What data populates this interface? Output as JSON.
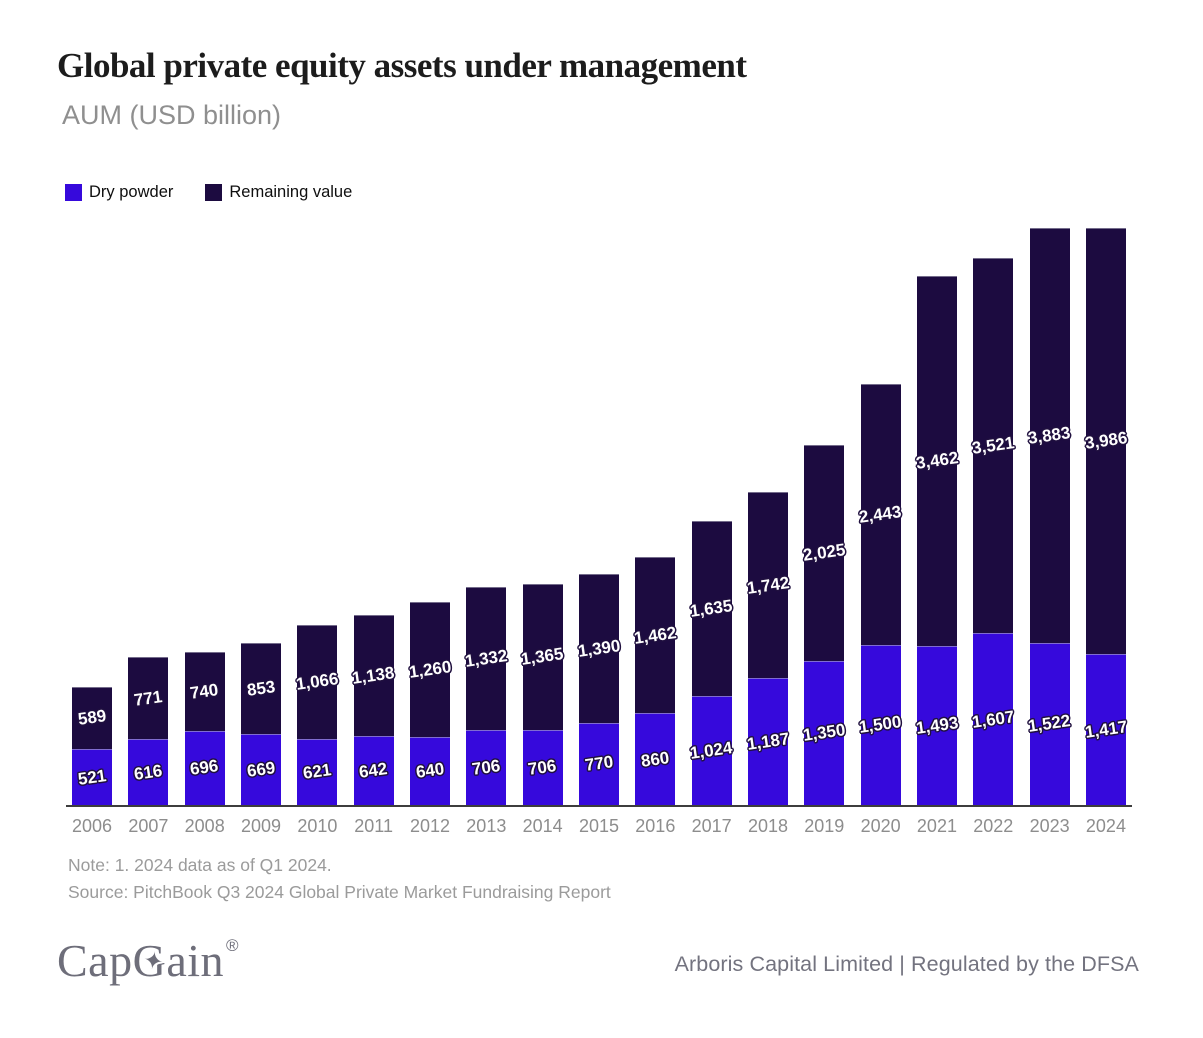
{
  "chart_data": {
    "type": "bar",
    "stacked": true,
    "title": "Global private equity assets under management",
    "subtitle": "AUM (USD billion)",
    "categories": [
      "2006",
      "2007",
      "2008",
      "2009",
      "2010",
      "2011",
      "2012",
      "2013",
      "2014",
      "2015",
      "2016",
      "2017",
      "2018",
      "2019",
      "2020",
      "2021",
      "2022",
      "2023",
      "2024"
    ],
    "series": [
      {
        "name": "Dry powder",
        "color": "#3609dc",
        "values": [
          521,
          616,
          696,
          669,
          621,
          642,
          640,
          706,
          706,
          770,
          860,
          1024,
          1187,
          1350,
          1500,
          1493,
          1607,
          1522,
          1417
        ]
      },
      {
        "name": "Remaining value",
        "color": "#1c0b40",
        "values": [
          589,
          771,
          740,
          853,
          1066,
          1138,
          1260,
          1332,
          1365,
          1390,
          1462,
          1635,
          1742,
          2025,
          2443,
          3462,
          3521,
          3883,
          3986
        ]
      }
    ],
    "ylim": [
      0,
      5405
    ],
    "grid": false,
    "axis_line": true,
    "legend_position": "top-left",
    "value_labels": "white, inside each segment, slightly rotated"
  },
  "footer": {
    "note": "Note: 1. 2024 data as of Q1 2024.",
    "source": "Source: PitchBook Q3 2024 Global Private Market Fundraising Report"
  },
  "brand": {
    "prefix": "Cap",
    "g_letter": "G",
    "suffix": "ain",
    "star": "✦",
    "registered": "®"
  },
  "compliance": "Arboris Capital Limited | Regulated by the DFSA"
}
